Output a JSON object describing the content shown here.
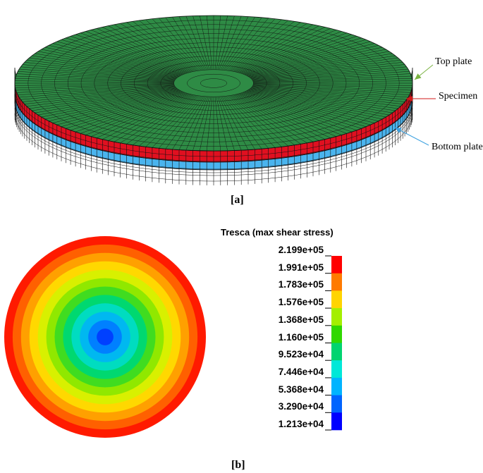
{
  "figure_a": {
    "caption": "[a]",
    "labels": {
      "top_plate": "Top plate",
      "specimen": "Specimen",
      "bottom_plate": "Bottom plate"
    },
    "colors": {
      "top_plate": "#2e8b45",
      "specimen": "#e01020",
      "bottom_plate": "#4ab4ee",
      "mesh_lines": "#101010"
    }
  },
  "figure_b": {
    "caption": "[b]",
    "legend": {
      "title": "Tresca (max shear stress)",
      "values": [
        "2.199e+05",
        "1.991e+05",
        "1.783e+05",
        "1.576e+05",
        "1.368e+05",
        "1.160e+05",
        "9.523e+04",
        "7.446e+04",
        "5.368e+04",
        "3.290e+04",
        "1.213e+04"
      ],
      "colors": [
        "#ff0000",
        "#ff7a00",
        "#ffd400",
        "#a4ef00",
        "#30d800",
        "#00d470",
        "#00e8d8",
        "#00b4ff",
        "#0064ff",
        "#0000ff"
      ]
    },
    "contour_colors_outer_to_center": [
      "#ff1a00",
      "#ff6000",
      "#ffa000",
      "#ffd800",
      "#d8f000",
      "#90e800",
      "#40dc20",
      "#00d870",
      "#00dcc0",
      "#00b8f0",
      "#0080ff",
      "#0040ff"
    ]
  }
}
